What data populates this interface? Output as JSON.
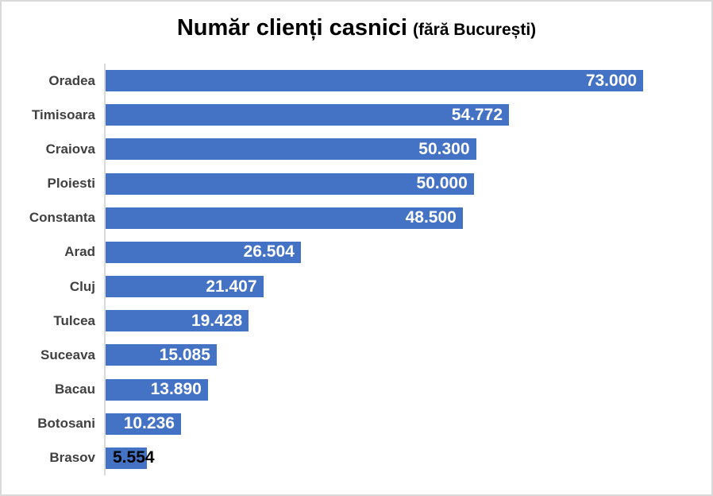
{
  "page": {
    "background": "#FFFFFF",
    "border_color": "#D9D9D9"
  },
  "chart_data": {
    "type": "bar",
    "orientation": "horizontal",
    "title": "Număr clienți casnici",
    "title_note": "(fără București)",
    "categories": [
      "Oradea",
      "Timisoara",
      "Craiova",
      "Ploiesti",
      "Constanta",
      "Arad",
      "Cluj",
      "Tulcea",
      "Suceava",
      "Bacau",
      "Botosani",
      "Brasov"
    ],
    "values": [
      73000,
      54772,
      50300,
      50000,
      48500,
      26504,
      21407,
      19428,
      15085,
      13890,
      10236,
      5554
    ],
    "value_labels": [
      "73.000",
      "54.772",
      "50.300",
      "50.000",
      "48.500",
      "26.504",
      "21.407",
      "19.428",
      "15.085",
      "13.890",
      "10.236",
      "5.554"
    ],
    "label_inside": [
      true,
      true,
      true,
      true,
      true,
      true,
      true,
      true,
      true,
      true,
      true,
      false
    ],
    "xlabel": "",
    "ylabel": "",
    "xlim": [
      0,
      80000
    ],
    "grid": false,
    "legend_position": "none",
    "data_label_position": "inside-end",
    "bar_color": "#4472C4",
    "value_label_color_inside": "#FFFFFF",
    "value_label_color_overflow": "#000000",
    "category_label_color": "#404040",
    "axis_line_color": "#D9D9D9"
  }
}
